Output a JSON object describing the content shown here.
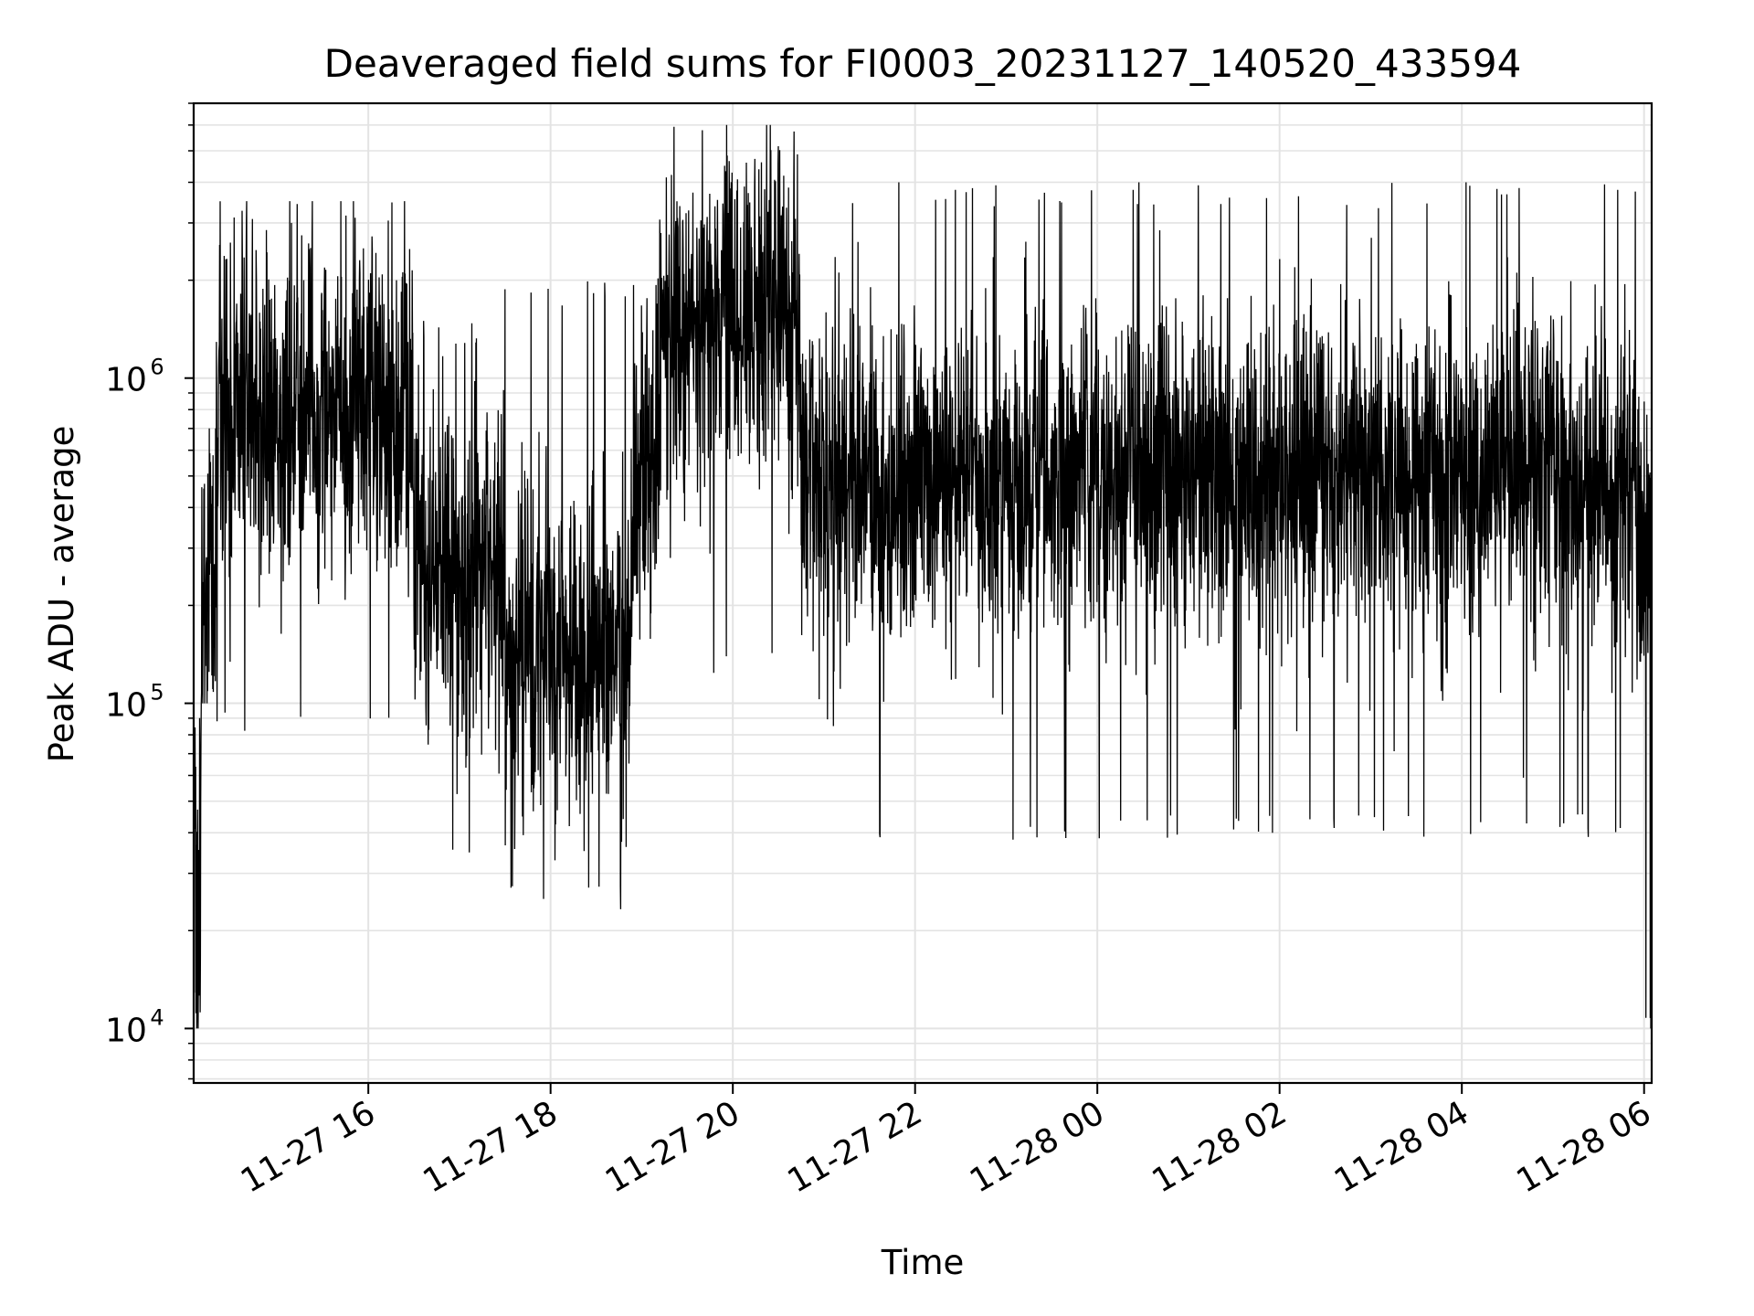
{
  "chart_data": {
    "type": "line",
    "title": "Deaveraged field sums for FI0003_20231127_140520_433594",
    "xlabel": "Time",
    "ylabel": "Peak ADU - average",
    "yscale": "log",
    "ylim": [
      6800,
      7000000
    ],
    "xlim": [
      "2023-11-27 14:05",
      "2023-11-28 06:05"
    ],
    "grid": true,
    "line_color": "#000000",
    "grid_color": "#e3e3e3",
    "x_ticks": [
      "11-27 16",
      "11-27 18",
      "11-27 20",
      "11-27 22",
      "11-28 00",
      "11-28 02",
      "11-28 04",
      "11-28 06"
    ],
    "y_ticks": [
      {
        "base": "10",
        "exp": "4",
        "value": 10000
      },
      {
        "base": "10",
        "exp": "5",
        "value": 100000
      },
      {
        "base": "10",
        "exp": "6",
        "value": 1000000
      }
    ],
    "series": [
      {
        "x_start": "2023-11-27 14:05",
        "x_end": "2023-11-28 06:05",
        "segments": [
          {
            "from": "2023-11-27 14:05",
            "to": "2023-11-27 14:10",
            "level": 30000,
            "low": 10000,
            "high": 90000
          },
          {
            "from": "2023-11-27 14:10",
            "to": "2023-11-27 14:20",
            "level": 250000,
            "low": 100000,
            "high": 700000
          },
          {
            "from": "2023-11-27 14:20",
            "to": "2023-11-27 16:30",
            "level": 800000,
            "low": 80000,
            "high": 3500000
          },
          {
            "from": "2023-11-27 16:30",
            "to": "2023-11-27 17:30",
            "level": 250000,
            "low": 33000,
            "high": 1500000
          },
          {
            "from": "2023-11-27 17:30",
            "to": "2023-11-27 18:55",
            "level": 150000,
            "low": 23000,
            "high": 2000000
          },
          {
            "from": "2023-11-27 18:55",
            "to": "2023-11-27 19:10",
            "level": 500000,
            "low": 150000,
            "high": 2000000
          },
          {
            "from": "2023-11-27 19:10",
            "to": "2023-11-27 20:45",
            "level": 1500000,
            "low": 120000,
            "high": 6000000
          },
          {
            "from": "2023-11-27 20:45",
            "to": "2023-11-28 05:55",
            "level": 500000,
            "low": 38000,
            "high": 4000000
          },
          {
            "from": "2023-11-28 05:55",
            "to": "2023-11-28 06:05",
            "level": 300000,
            "low": 10000,
            "high": 2800000
          }
        ]
      }
    ]
  }
}
